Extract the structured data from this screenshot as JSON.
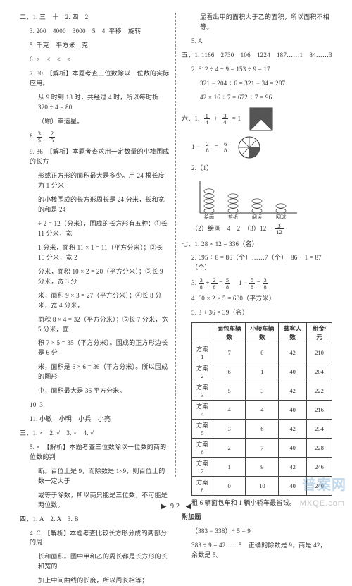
{
  "left": {
    "l1": "二、1. 三　十　2. 四　2",
    "l2": "3. 200　4000　3000　5　4. 平移　旋转",
    "l3": "5. 千克　平方米　克",
    "l4": "6. >　<　<　<",
    "l5": "7. 80　【解析】本题考查三位数除以一位数的实际应用。",
    "l5b": "从 9 时到 13 时，共经过 4 时，所以每时折 320 ÷ 4 = 80",
    "l5c": "（颗）幸运星。",
    "l6a": "8. ",
    "l7": "9. 36　【解析】本题考查求用一定数量的小棒围成的长方",
    "l7b": "形或正方形的面积最大是多少。用 24 根长度为 1 分米",
    "l7c": "的小棒围成的长方形周长是 24 分米，长和宽的和是 24",
    "l7d": "÷ 2 = 12（分米），围成的长方形有五种：①长 11 分米，宽",
    "l7e": "1 分米，面积 11 × 1 = 11（平方分米）；②长 10 分米，宽 2",
    "l7f": "分米，面积 10 × 2 = 20（平方分米）；③长 9 分米，宽 3 分",
    "l7g": "米，面积 9 × 3 = 27（平方分米）；④长 8 分米，宽 4 分米，",
    "l7h": "面积 8 × 4 = 32（平方分米）；⑤长 7 分米，宽 5 分米，面",
    "l7i": "积 7 × 5 = 35（平方分米）。围成的正方形边长是 6 分",
    "l7j": "米，面积是 6 × 6 = 36（平方分米）。所以围成的图形",
    "l7k": "中，面积最大是 36 平方分米。",
    "l8": "10. 3",
    "l9": "11. 小敏　小明　小兵　小亮",
    "l10": "三、1. ×　2. √　3. ×　4. √",
    "l11": "5. ×　【解析】本题考查三位数除以一位数的商的位数的判",
    "l11b": "断。百位上是 9，而除数是 1~9，则百位上的数一定大于",
    "l11c": "或等于除数，所以商只能是三位数，不可能是两位数。",
    "l12": "四、1. A　2. A　3. B",
    "l13": "4. C　【解析】本题考查比较长方形分成的两部分的周",
    "l13b": "长和面积。图中甲和乙的周长都是长方形的长和宽的",
    "l13c": "加上中间曲线的长度，所以周长相等；",
    "frac8a_n": "3",
    "frac8a_d": "5",
    "frac8b_n": "2",
    "frac8b_d": "5"
  },
  "right": {
    "r0": "显看出甲的面积大于乙的面积，所以面积不相等。",
    "r1": "5. A",
    "r2": "五、1. 1166　2730　106　1224　187……1　84……3",
    "r3": "2. 612 ÷ 4 ÷ 9 = 153 ÷ 9 = 17",
    "r3b": "321 − 204 ÷ 6 = 321 − 34 = 287",
    "r3c": "42 × 16 ÷ 7 = 672 ÷ 7 = 96",
    "r4a": "六、1. ",
    "frac61a_n": "1",
    "frac61a_d": "4",
    "frac61b_n": "3",
    "frac61b_d": "4",
    "r4b": "1 − ",
    "frac62a_n": "2",
    "frac62a_d": "8",
    "frac62b_n": "6",
    "frac62b_d": "8",
    "r5": "2.（1）",
    "barlabels": [
      "绘画",
      "剪纸",
      "阅读",
      "网球"
    ],
    "r6a": "（2）绘画　4　2　（3）12　",
    "frac63_n": "3",
    "frac63_d": "12",
    "r7": "七、1. 28 × 12 = 336（名）",
    "r8": "2. 695 ÷ 8 = 86（个）……7（个）　86 + 1 = 87（个）",
    "r9a": "3. ",
    "frac71a_n": "3",
    "frac71a_d": "8",
    "frac71b_n": "2",
    "frac71b_d": "8",
    "frac71c_n": "5",
    "frac71c_d": "8",
    "frac71d_n": "5",
    "frac71d_d": "8",
    "frac71e_n": "3",
    "frac71e_d": "8",
    "r10": "4. 60 × 2 × 5 = 600（平方米）",
    "r11": "5. 3 + 36 = 39（名）",
    "table": {
      "head": [
        "",
        "面包车辆数",
        "小轿车辆数",
        "载客人数",
        "租金/元"
      ],
      "rows": [
        [
          "方案1",
          "7",
          "0",
          "42",
          "210"
        ],
        [
          "方案2",
          "6",
          "1",
          "40",
          "204"
        ],
        [
          "方案3",
          "5",
          "3",
          "42",
          "222"
        ],
        [
          "方案4",
          "4",
          "4",
          "40",
          "216"
        ],
        [
          "方案5",
          "3",
          "6",
          "42",
          "234"
        ],
        [
          "方案6",
          "2",
          "7",
          "40",
          "228"
        ],
        [
          "方案7",
          "1",
          "9",
          "42",
          "246"
        ],
        [
          "方案8",
          "0",
          "10",
          "40",
          "240"
        ]
      ]
    },
    "r12": "租 6 辆面包车和 1 辆小轿车最省钱。",
    "r13": "附加题",
    "r14": "（383 − 338）÷ 5 = 9",
    "r15": "383 ÷ 9 = 42……5　正确的除数是 9，商是 42，余数是 5。"
  },
  "pagenum": "92",
  "colors": {
    "text": "#333333",
    "border": "#444444",
    "dash": "#888888",
    "wm1": "rgba(120,170,210,0.45)",
    "wm2": "rgba(150,150,150,0.55)"
  }
}
